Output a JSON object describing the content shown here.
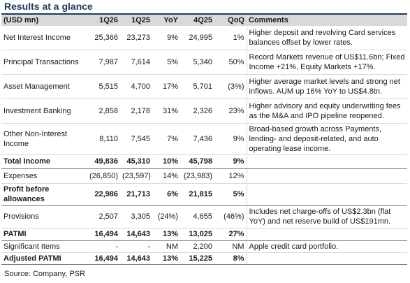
{
  "title": "Results at a glance",
  "header": {
    "label": "(USD mn)",
    "col_1q26": "1Q26",
    "col_1q25": "1Q25",
    "col_yoy": "YoY",
    "col_4q25": "4Q25",
    "col_qoq": "QoQ",
    "col_comments": "Comments"
  },
  "rows": [
    {
      "label": "Net Interest Income",
      "v1q26": "25,366",
      "v1q25": "23,273",
      "yoy": "9%",
      "v4q25": "24,995",
      "qoq": "1%",
      "comment": "Higher deposit and revolving Card services balances offset by lower rates."
    },
    {
      "label": "Principal Transactions",
      "v1q26": "7,987",
      "v1q25": "7,614",
      "yoy": "5%",
      "v4q25": "5,340",
      "qoq": "50%",
      "comment": "Record Markets revenue of US$11.6bn; Fixed Income +21%, Equity Markets +17%."
    },
    {
      "label": "Asset Management",
      "v1q26": "5,515",
      "v1q25": "4,700",
      "yoy": "17%",
      "v4q25": "5,701",
      "qoq": "(3%)",
      "comment": "Higher average market levels and strong net inflows. AUM up 16% YoY to US$4.8tn."
    },
    {
      "label": "Investment Banking",
      "v1q26": "2,858",
      "v1q25": "2,178",
      "yoy": "31%",
      "v4q25": "2,326",
      "qoq": "23%",
      "comment": "Higher advisory and equity underwriting fees as the M&A and IPO pipeline reopened."
    },
    {
      "label": "Other Non-Interest Income",
      "v1q26": "8,110",
      "v1q25": "7,545",
      "yoy": "7%",
      "v4q25": "7,436",
      "qoq": "9%",
      "comment": "Broad-based growth across Payments, lending- and deposit-related, and auto operating lease income."
    },
    {
      "label": "Total Income",
      "v1q26": "49,836",
      "v1q25": "45,310",
      "yoy": "10%",
      "v4q25": "45,798",
      "qoq": "9%",
      "comment": ""
    },
    {
      "label": "Expenses",
      "v1q26": "(26,850)",
      "v1q25": "(23,597)",
      "yoy": "14%",
      "v4q25": "(23,983)",
      "qoq": "12%",
      "comment": ""
    },
    {
      "label": "Profit before allowances",
      "v1q26": "22,986",
      "v1q25": "21,713",
      "yoy": "6%",
      "v4q25": "21,815",
      "qoq": "5%",
      "comment": ""
    },
    {
      "label": "Provisions",
      "v1q26": "2,507",
      "v1q25": "3,305",
      "yoy": "(24%)",
      "v4q25": "4,655",
      "qoq": "(46%)",
      "comment": "Includes net charge-offs of US$2.3bn (flat YoY) and net reserve build of US$191mn."
    },
    {
      "label": "PATMI",
      "v1q26": "16,494",
      "v1q25": "14,643",
      "yoy": "13%",
      "v4q25": "13,025",
      "qoq": "27%",
      "comment": ""
    },
    {
      "label": "Significant Items",
      "v1q26": "-",
      "v1q25": "-",
      "yoy": "NM",
      "v4q25": "2,200",
      "qoq": "NM",
      "comment": "Apple credit card portfolio."
    },
    {
      "label": "Adjusted PATMI",
      "v1q26": "16,494",
      "v1q25": "14,643",
      "yoy": "13%",
      "v4q25": "15,225",
      "qoq": "8%",
      "comment": ""
    }
  ],
  "source": "Source: Company, PSR"
}
